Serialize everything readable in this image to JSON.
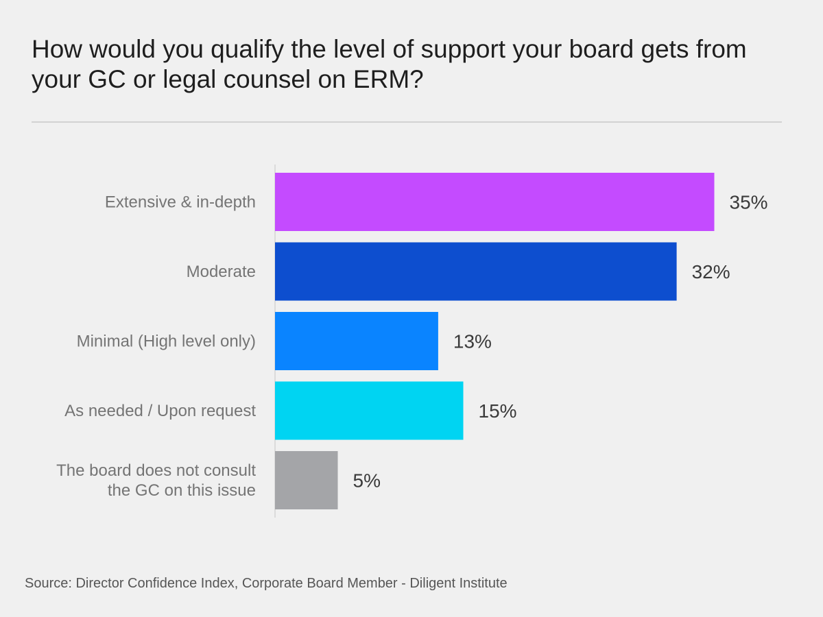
{
  "chart_data": {
    "type": "bar",
    "orientation": "horizontal",
    "title": "How would you qualify the level of support your board gets from your GC or legal counsel on ERM?",
    "categories": [
      "Extensive & in-depth",
      "Moderate",
      "Minimal (High level only)",
      "As needed / Upon request",
      "The board does not consult the GC on this issue"
    ],
    "values": [
      35,
      32,
      13,
      15,
      5
    ],
    "value_labels": [
      "35%",
      "32%",
      "13%",
      "15%",
      "5%"
    ],
    "colors": [
      "#c44bff",
      "#0d4ecf",
      "#0a84ff",
      "#00d4f2",
      "#a4a5a8"
    ],
    "xlim": [
      0,
      40
    ],
    "xlabel": "",
    "ylabel": "",
    "grid": false,
    "legend": "none"
  },
  "source": "Source: Director Confidence Index, Corporate Board Member - Diligent Institute"
}
